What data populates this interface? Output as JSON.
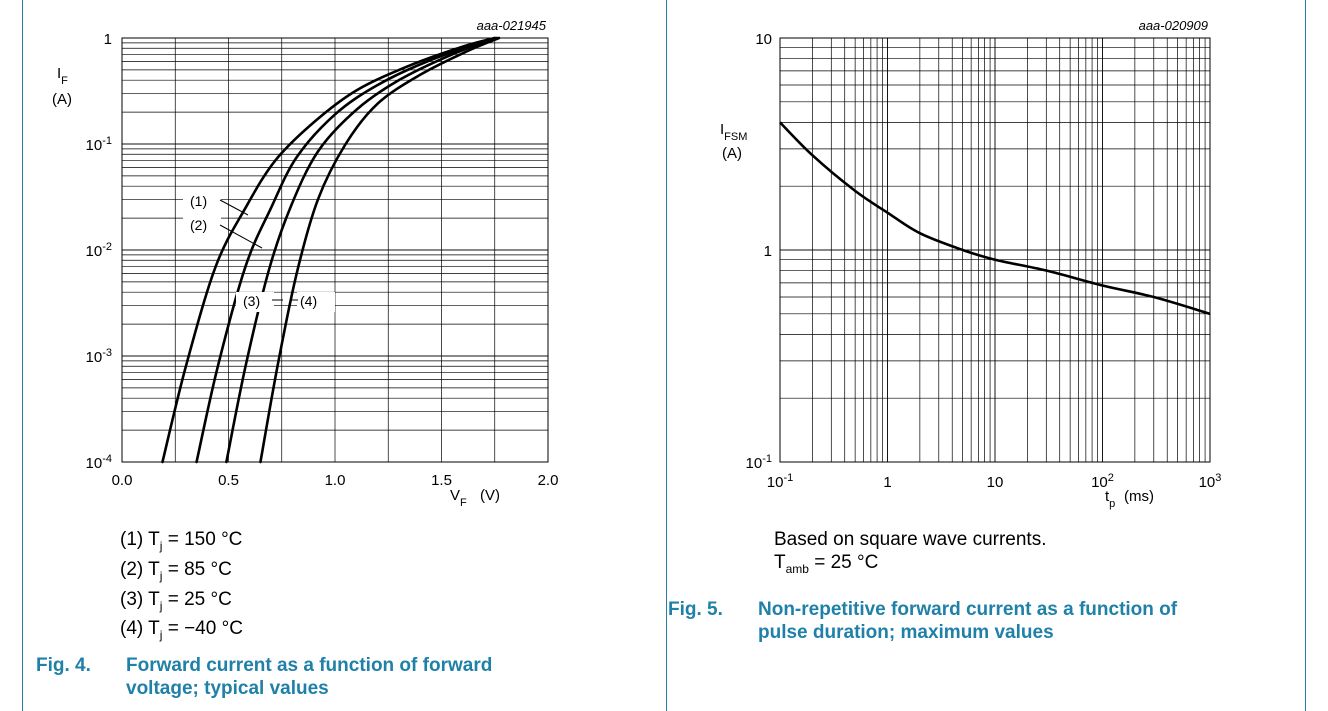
{
  "chart_data": [
    {
      "type": "line",
      "code": "aaa-021945",
      "xlabel": "V",
      "xlabel_sub": "F",
      "xlabel_unit": "(V)",
      "ylabel": "I",
      "ylabel_sub": "F",
      "ylabel_unit": "(A)",
      "xscale": "linear",
      "yscale": "log",
      "xlim": [
        0,
        2.0
      ],
      "ylim": [
        0.0001,
        1
      ],
      "xticks": [
        "0.0",
        "0.5",
        "1.0",
        "1.5",
        "2.0"
      ],
      "yticks": [
        {
          "base": "10",
          "exp": "-4"
        },
        {
          "base": "10",
          "exp": "-3"
        },
        {
          "base": "10",
          "exp": "-2"
        },
        {
          "base": "10",
          "exp": "-1"
        },
        {
          "base": "1",
          "exp": ""
        }
      ],
      "grid": true,
      "series": [
        {
          "name": "(1)",
          "x": [
            0.19,
            0.3,
            0.44,
            0.58,
            0.72,
            0.9,
            1.1,
            1.35,
            1.6,
            1.75
          ],
          "y": [
            0.0001,
            0.0008,
            0.007,
            0.025,
            0.07,
            0.16,
            0.32,
            0.55,
            0.83,
            1.0
          ]
        },
        {
          "name": "(2)",
          "x": [
            0.35,
            0.45,
            0.58,
            0.7,
            0.82,
            1.0,
            1.2,
            1.45,
            1.75
          ],
          "y": [
            0.0001,
            0.0008,
            0.007,
            0.025,
            0.075,
            0.19,
            0.36,
            0.62,
            1.0
          ]
        },
        {
          "name": "(3)",
          "x": [
            0.49,
            0.58,
            0.69,
            0.79,
            0.92,
            1.1,
            1.3,
            1.55,
            1.76
          ],
          "y": [
            0.0001,
            0.0008,
            0.0065,
            0.025,
            0.085,
            0.21,
            0.4,
            0.7,
            1.0
          ]
        },
        {
          "name": "(4)",
          "x": [
            0.65,
            0.73,
            0.82,
            0.92,
            1.05,
            1.2,
            1.4,
            1.62,
            1.77
          ],
          "y": [
            0.0001,
            0.0008,
            0.006,
            0.03,
            0.1,
            0.24,
            0.45,
            0.75,
            1.0
          ]
        }
      ],
      "series_labels": [
        "(1)",
        "(2)",
        "(3)",
        "(4)"
      ]
    },
    {
      "type": "line",
      "code": "aaa-020909",
      "xlabel": "t",
      "xlabel_sub": "p",
      "xlabel_unit": "(ms)",
      "ylabel": "I",
      "ylabel_sub": "FSM",
      "ylabel_unit": "(A)",
      "xscale": "log",
      "yscale": "log",
      "xlim": [
        0.1,
        1000
      ],
      "ylim": [
        0.1,
        10
      ],
      "xticks": [
        {
          "base": "10",
          "exp": "-1"
        },
        {
          "base": "1",
          "exp": ""
        },
        {
          "base": "10",
          "exp": ""
        },
        {
          "base": "10",
          "exp": "2"
        },
        {
          "base": "10",
          "exp": "3"
        }
      ],
      "yticks": [
        {
          "base": "10",
          "exp": "-1"
        },
        {
          "base": "1",
          "exp": ""
        },
        {
          "base": "10",
          "exp": ""
        }
      ],
      "grid": true,
      "series": [
        {
          "x": [
            0.1,
            0.2,
            0.5,
            1,
            2,
            5,
            10,
            30,
            100,
            300,
            1000
          ],
          "y": [
            4.0,
            2.8,
            1.9,
            1.5,
            1.2,
            1.0,
            0.9,
            0.8,
            0.68,
            0.6,
            0.5
          ]
        }
      ]
    }
  ],
  "left_notes": [
    {
      "pre": "(1) T",
      "sub": "j",
      "post": " = 150 °C"
    },
    {
      "pre": "(2) T",
      "sub": "j",
      "post": " = 85 °C"
    },
    {
      "pre": "(3) T",
      "sub": "j",
      "post": " = 25 °C"
    },
    {
      "pre": "(4) T",
      "sub": "j",
      "post": " = −40 °C"
    }
  ],
  "right_notes": {
    "line1": "Based on square wave currents.",
    "line2": {
      "pre": "T",
      "sub": "amb",
      "post": " = 25 °C"
    }
  },
  "captions": {
    "fig4_number": "Fig. 4.",
    "fig4_line1": "Forward current as a function of forward",
    "fig4_line2": "voltage; typical values",
    "fig5_number": "Fig. 5.",
    "fig5_line1": "Non-repetitive forward current as a function of",
    "fig5_line2": "pulse duration; maximum values"
  }
}
